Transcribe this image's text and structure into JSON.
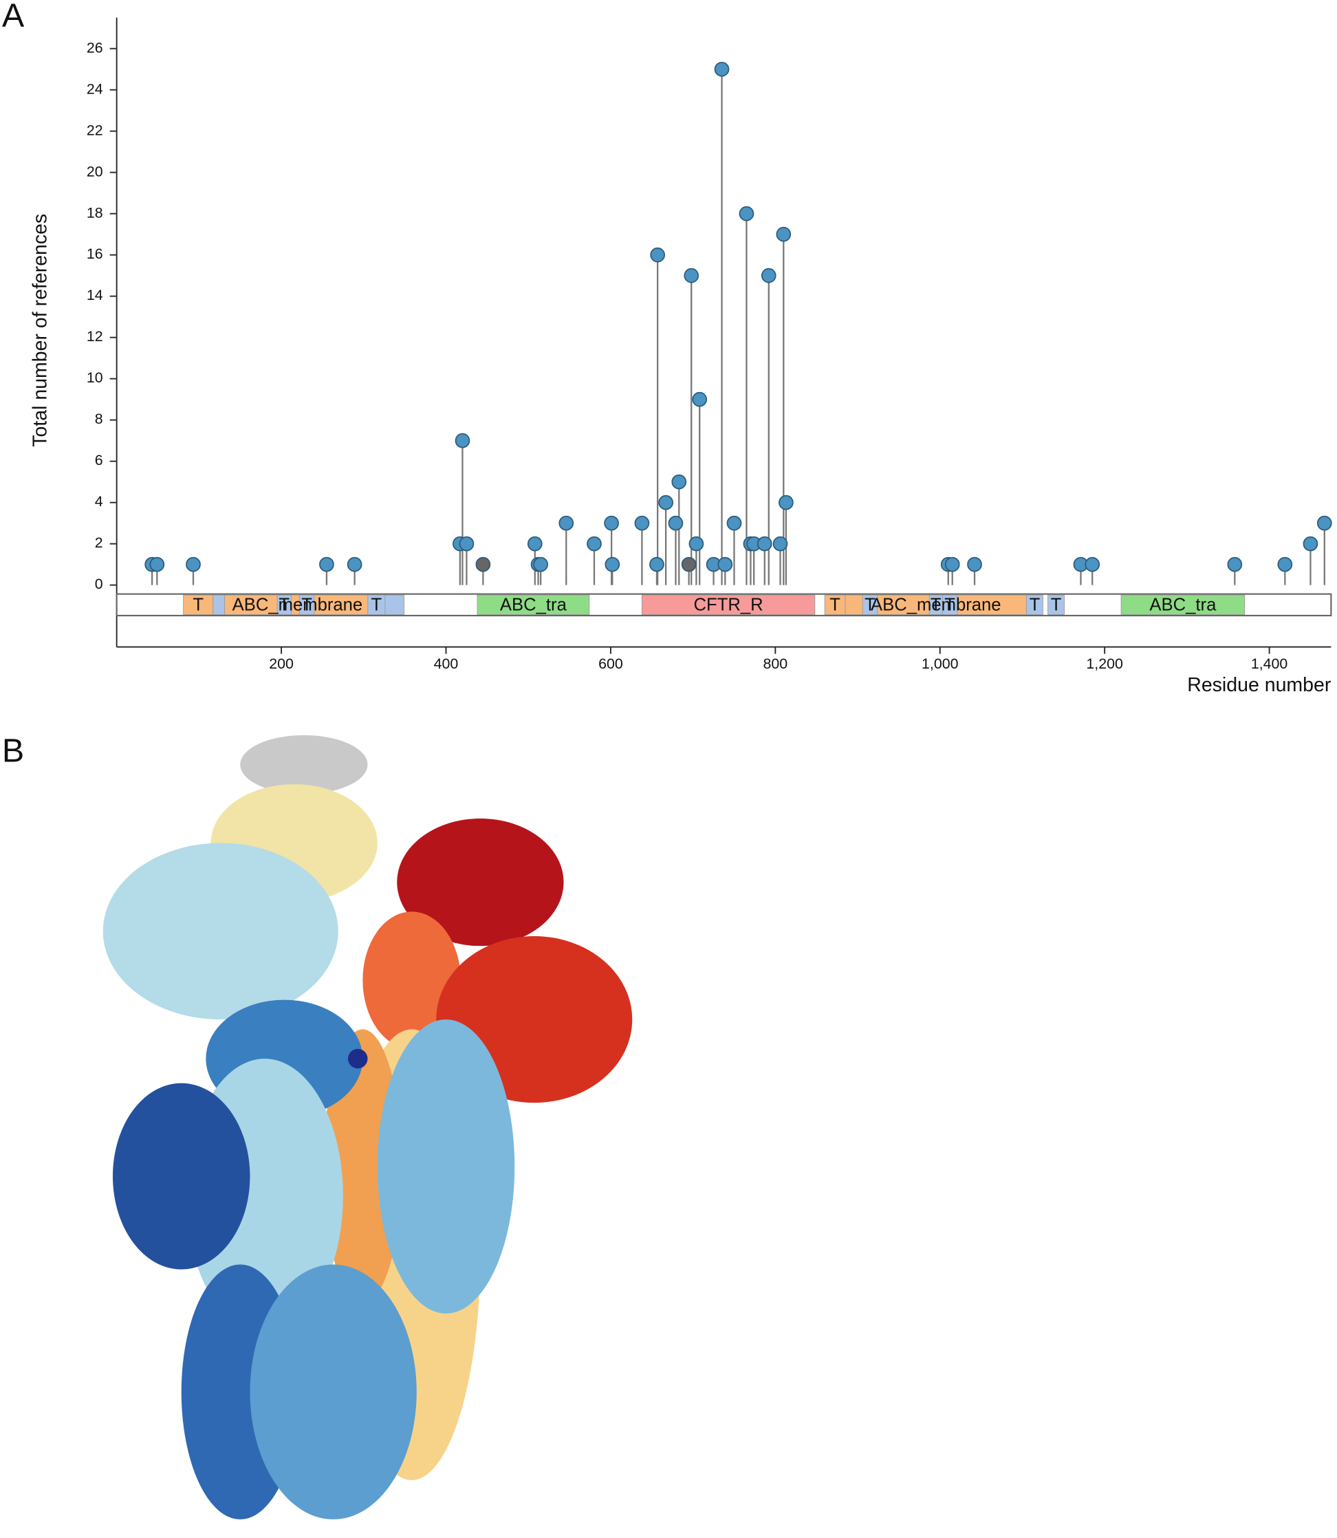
{
  "chart_data": {
    "type": "lollipop",
    "panel_label": "A",
    "x_label": "Residue number",
    "y_label": "Total number of references",
    "xlim": [
      0,
      1475
    ],
    "ylim": [
      -3,
      27.5
    ],
    "xticks": [
      200,
      400,
      600,
      800,
      {
        "value": 1000,
        "label": "1,000"
      },
      {
        "value": 1200,
        "label": "1,200"
      },
      {
        "value": 1400,
        "label": "1,400"
      }
    ],
    "yticks": [
      0,
      2,
      4,
      6,
      8,
      10,
      12,
      14,
      16,
      18,
      20,
      22,
      24,
      26
    ],
    "x": [
      43,
      49,
      93,
      255,
      289,
      417,
      420,
      425,
      445,
      508,
      512,
      515,
      546,
      580,
      601,
      602,
      638,
      656,
      657,
      667,
      679,
      683,
      695,
      698,
      704,
      708,
      725,
      735,
      739,
      750,
      765,
      770,
      774,
      787,
      792,
      806,
      810,
      813,
      1010,
      1015,
      1042,
      1171,
      1185,
      1358,
      1419,
      1450,
      1467
    ],
    "values": [
      1,
      1,
      1,
      1,
      1,
      2,
      7,
      2,
      1,
      2,
      1,
      1,
      3,
      2,
      3,
      1,
      3,
      1,
      16,
      4,
      3,
      5,
      1,
      15,
      2,
      9,
      1,
      25,
      1,
      3,
      18,
      2,
      2,
      2,
      15,
      2,
      17,
      4,
      1,
      1,
      1,
      1,
      1,
      1,
      1,
      2,
      3
    ],
    "colors": [
      "#4a93c3",
      "#4a93c3",
      "#4a93c3",
      "#4a93c3",
      "#4a93c3",
      "#4a93c3",
      "#4a93c3",
      "#4a93c3",
      "#666666",
      "#4a93c3",
      "#4a93c3",
      "#4a93c3",
      "#4a93c3",
      "#4a93c3",
      "#4a93c3",
      "#4a93c3",
      "#4a93c3",
      "#4a93c3",
      "#4a93c3",
      "#4a93c3",
      "#4a93c3",
      "#4a93c3",
      "#666666",
      "#4a93c3",
      "#4a93c3",
      "#4a93c3",
      "#4a93c3",
      "#4a93c3",
      "#4a93c3",
      "#4a93c3",
      "#4a93c3",
      "#4a93c3",
      "#4a93c3",
      "#4a93c3",
      "#4a93c3",
      "#4a93c3",
      "#4a93c3",
      "#4a93c3",
      "#4a93c3",
      "#4a93c3",
      "#4a93c3",
      "#4a93c3",
      "#4a93c3",
      "#4a93c3",
      "#4a93c3",
      "#4a93c3",
      "#4a93c3"
    ],
    "domains": [
      {
        "label": "T",
        "start": 81,
        "end": 117,
        "color": "#f9b77a"
      },
      {
        "start": 117,
        "end": 131,
        "color": "#a9c4e8"
      },
      {
        "label": "ABC_membrane",
        "start": 131,
        "end": 308,
        "color": "#f9b77a"
      },
      {
        "label": "T",
        "start": 195,
        "end": 212,
        "color": "#a9c4e8"
      },
      {
        "label": "T",
        "start": 222,
        "end": 240,
        "color": "#a9c4e8"
      },
      {
        "label": "T",
        "start": 305,
        "end": 326,
        "color": "#a9c4e8"
      },
      {
        "start": 326,
        "end": 349,
        "color": "#a9c4e8"
      },
      {
        "label": "ABC_tra",
        "start": 438,
        "end": 574,
        "color": "#8fdc86"
      },
      {
        "label": "CFTR_R",
        "start": 638,
        "end": 848,
        "color": "#f79a9a"
      },
      {
        "label": "T",
        "start": 860,
        "end": 885,
        "color": "#f9b77a"
      },
      {
        "label": "ABC_membrane",
        "start": 885,
        "end": 1105,
        "color": "#f9b77a"
      },
      {
        "label": "T",
        "start": 906,
        "end": 924,
        "color": "#a9c4e8"
      },
      {
        "label": "T",
        "start": 987,
        "end": 1003,
        "color": "#a9c4e8"
      },
      {
        "label": "T",
        "start": 1003,
        "end": 1021,
        "color": "#a9c4e8"
      },
      {
        "label": "T",
        "start": 1105,
        "end": 1125,
        "color": "#a9c4e8"
      },
      {
        "label": "T",
        "start": 1131,
        "end": 1151,
        "color": "#a9c4e8"
      },
      {
        "label": "ABC_tra",
        "start": 1220,
        "end": 1370,
        "color": "#8fdc86"
      }
    ]
  },
  "panel_b": {
    "panel_label": "B"
  }
}
